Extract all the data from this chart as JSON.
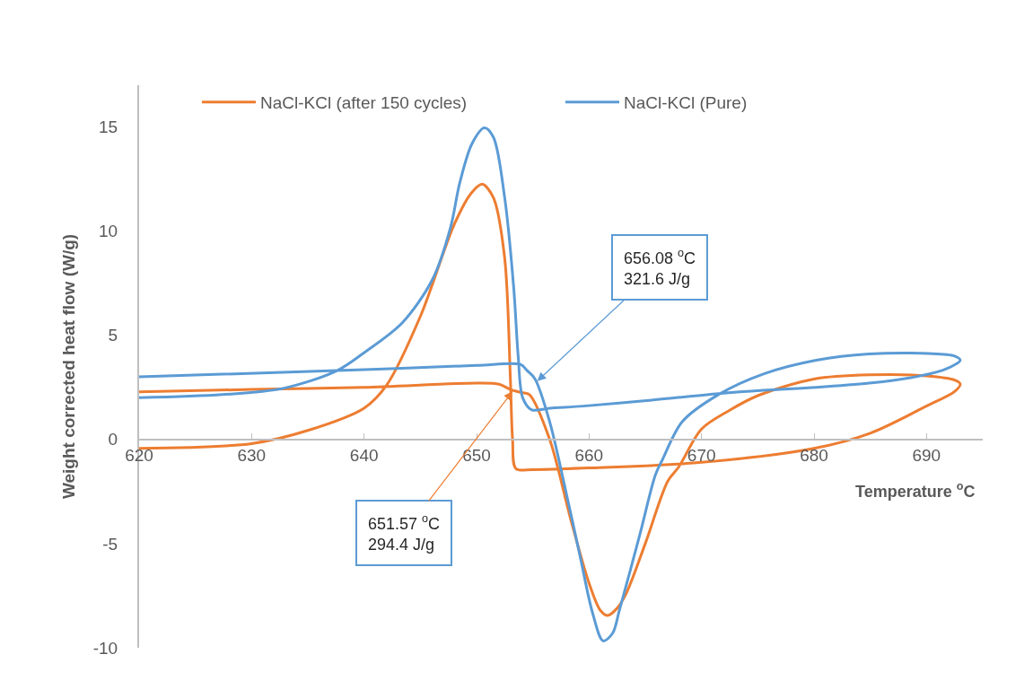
{
  "chart_data": {
    "type": "line",
    "xlabel": "Temperature $^{o}$C",
    "ylabel": "Weight corrected heat flow (W/g)",
    "xlim": [
      620,
      695
    ],
    "xticks": [
      620,
      630,
      640,
      650,
      660,
      670,
      680,
      690
    ],
    "ylim": [
      -10,
      17
    ],
    "yticks": [
      -10,
      -5,
      0,
      5,
      10,
      15
    ],
    "legend": "top",
    "marker": "none",
    "line_style": "solid",
    "series": [
      {
        "name": "NaCl-KCl (after 150 cycles)",
        "color": "#ed7d31",
        "x": [
          620,
          630,
          640,
          650,
          652,
          653,
          654,
          654.7,
          656.5,
          658.4,
          660,
          661,
          661.65,
          662.5,
          663.3,
          665,
          667,
          668,
          670,
          672.5,
          675,
          680,
          685,
          690,
          692.5,
          693,
          692.5,
          690,
          685,
          680,
          670,
          660,
          655,
          653.5,
          653.2,
          653,
          652.5,
          651.5,
          650.5,
          649.5,
          648,
          645,
          642,
          640,
          635,
          630,
          620
        ],
        "values": [
          2.28,
          2.4,
          2.5,
          2.7,
          2.65,
          2.4,
          2.25,
          2.15,
          0,
          -3.9,
          -6.9,
          -8.2,
          -8.45,
          -8.1,
          -7.4,
          -5,
          -2,
          -1.3,
          0.5,
          1.4,
          2.1,
          2.9,
          3.1,
          3.05,
          2.85,
          2.66,
          2.3,
          1.6,
          0.3,
          -0.43,
          -1.1,
          -1.37,
          -1.45,
          -1.4,
          0,
          3,
          8.7,
          11.6,
          12.25,
          11.8,
          10.3,
          5.9,
          2.6,
          1.5,
          0.43,
          -0.2,
          -0.43
        ]
      },
      {
        "name": "NaCl-KCl (Pure)",
        "color": "#5b9bd5",
        "x": [
          620,
          640,
          650,
          653.9,
          654.5,
          655.2,
          656.5,
          657.9,
          659.2,
          660.3,
          661.25,
          662.1,
          662.7,
          664.5,
          665.9,
          666.5,
          668.3,
          671.5,
          675.5,
          680.2,
          684.9,
          690.2,
          692.5,
          693,
          691.6,
          689,
          684.9,
          680.2,
          675.5,
          671.5,
          664.9,
          659.5,
          656.5,
          654.9,
          654.1,
          653.7,
          653.3,
          652.5,
          651.5,
          650.7,
          649.6,
          648.5,
          647.7,
          646.1,
          643.4,
          640.1,
          637.6,
          632.8,
          627.4,
          620
        ],
        "values": [
          3.0,
          3.35,
          3.55,
          3.6,
          3.3,
          2.9,
          0.85,
          -2.4,
          -5.6,
          -8.3,
          -9.67,
          -9.3,
          -8.2,
          -4.6,
          -1.7,
          -1.0,
          0.86,
          2.15,
          3.14,
          3.8,
          4.1,
          4.12,
          4.0,
          3.8,
          3.35,
          3.0,
          2.7,
          2.5,
          2.36,
          2.2,
          1.85,
          1.6,
          1.5,
          1.42,
          2.0,
          4.0,
          7.3,
          11.6,
          14.5,
          14.95,
          14.2,
          12.3,
          10.2,
          7.7,
          5.6,
          4.2,
          3.3,
          2.45,
          2.15,
          2.0
        ]
      }
    ],
    "annotations": [
      {
        "text": "656.08 $^{o}$C\n321.6 J/g",
        "x": 655.4,
        "y": 2.8
      },
      {
        "text": "651.57 $^{o}$C\n294.4 J/g",
        "x": 653.2,
        "y": 2.3
      }
    ]
  }
}
